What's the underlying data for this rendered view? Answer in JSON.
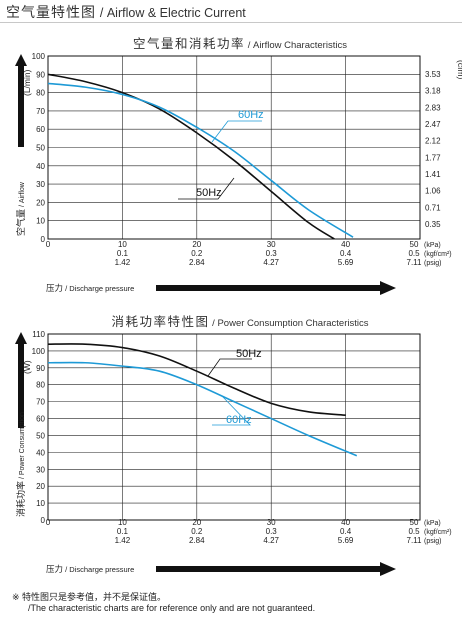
{
  "page": {
    "title_cn": "空气量特性图",
    "title_en": "/ Airflow & Electric Current",
    "note_cn": "※ 特性图只是参考值，并不是保证值。",
    "note_en": "/The characteristic charts are for reference only and are not guaranteed."
  },
  "colors": {
    "50hz": "#111111",
    "60hz": "#1e9ad6",
    "grid": "#222222",
    "axis": "#111111"
  },
  "chart_data": [
    {
      "type": "line",
      "title_cn": "空气量和消耗功率",
      "title_en": "/ Airflow Characteristics",
      "ylabel_left": "(L/min)",
      "ylabel_left_cn": "空气量",
      "ylabel_left_en": "/ Airflow",
      "ylabel_right": "(cfm)",
      "xlabel_cn": "压力",
      "xlabel_en": "/ Discharge pressure",
      "xlim": [
        0,
        50
      ],
      "ylim": [
        0,
        100
      ],
      "y_ticks": [
        0,
        10,
        20,
        30,
        40,
        50,
        60,
        70,
        80,
        90,
        100
      ],
      "x_ticks_kpa": [
        0,
        10,
        20,
        30,
        40,
        50
      ],
      "x_ticks_kgf": [
        "0.1",
        "0.2",
        "0.3",
        "0.4",
        "0.5"
      ],
      "x_ticks_psig": [
        "1.42",
        "2.84",
        "4.27",
        "5.69",
        "7.11"
      ],
      "x_units": [
        "(kPa)",
        "(kgf/cm²)",
        "(psig)"
      ],
      "right_ticks": [
        "3.53",
        "3.18",
        "2.83",
        "2.47",
        "2.12",
        "1.77",
        "1.41",
        "1.06",
        "0.71",
        "0.35"
      ],
      "series": [
        {
          "name": "50Hz",
          "x": [
            0,
            5,
            10,
            15,
            20,
            25,
            30,
            35,
            38.5
          ],
          "y": [
            90,
            86,
            80,
            71,
            58,
            43,
            26,
            9,
            0
          ]
        },
        {
          "name": "60Hz",
          "x": [
            0,
            5,
            10,
            15,
            20,
            25,
            30,
            35,
            41
          ],
          "y": [
            85,
            83,
            79,
            72,
            61,
            48,
            32,
            16,
            1
          ]
        }
      ],
      "labels": [
        "60Hz",
        "50Hz"
      ]
    },
    {
      "type": "line",
      "title_cn": "消耗功率特性图",
      "title_en": "/ Power Consumption Characteristics",
      "ylabel_left": "(W)",
      "ylabel_left_cn": "消耗功率",
      "ylabel_left_en": "/ Power Consumption",
      "xlabel_cn": "压力",
      "xlabel_en": "/ Discharge pressure",
      "xlim": [
        0,
        50
      ],
      "ylim": [
        0,
        110
      ],
      "y_ticks": [
        0,
        10,
        20,
        30,
        40,
        50,
        60,
        70,
        80,
        90,
        100,
        110
      ],
      "x_ticks_kpa": [
        0,
        10,
        20,
        30,
        40,
        50
      ],
      "x_ticks_kgf": [
        "0.1",
        "0.2",
        "0.3",
        "0.4",
        "0.5"
      ],
      "x_ticks_psig": [
        "1.42",
        "2.84",
        "4.27",
        "5.69",
        "7.11"
      ],
      "x_units": [
        "(kPa)",
        "(kgf/cm²)",
        "(psig)"
      ],
      "series": [
        {
          "name": "50Hz",
          "x": [
            0,
            5,
            10,
            15,
            20,
            25,
            30,
            35,
            40
          ],
          "y": [
            104,
            104,
            102,
            97,
            88,
            78,
            69,
            64,
            62
          ]
        },
        {
          "name": "60Hz",
          "x": [
            0,
            5,
            10,
            15,
            20,
            25,
            30,
            35,
            41.5
          ],
          "y": [
            93,
            93,
            91,
            88,
            80,
            70,
            60,
            50,
            38
          ]
        }
      ],
      "labels": [
        "50Hz",
        "60Hz"
      ]
    }
  ]
}
